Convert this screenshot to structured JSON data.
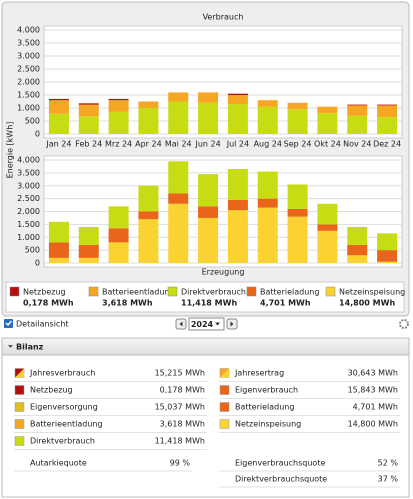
{
  "chart_data": [
    {
      "type": "bar",
      "stacked": true,
      "title": "Verbrauch",
      "y_label": "Energie [kWh]",
      "categories": [
        "Jan 24",
        "Feb 24",
        "Mrz 24",
        "Apr 24",
        "Mai 24",
        "Jun 24",
        "Jul 24",
        "Aug 24",
        "Sep 24",
        "Okt 24",
        "Nov 24",
        "Dez 24"
      ],
      "series": [
        {
          "name": "Direktverbrauch",
          "color": "#c8dc14",
          "values": [
            780,
            680,
            850,
            1000,
            1250,
            1200,
            1150,
            1050,
            950,
            800,
            700,
            650
          ]
        },
        {
          "name": "Batterieentladung",
          "color": "#f5a623",
          "values": [
            520,
            450,
            450,
            250,
            350,
            400,
            350,
            250,
            250,
            250,
            400,
            450
          ]
        },
        {
          "name": "Netzbezug",
          "color": "#b01010",
          "values": [
            50,
            50,
            50,
            0,
            0,
            0,
            50,
            0,
            0,
            0,
            30,
            30
          ]
        }
      ],
      "ylim": [
        0,
        4000
      ],
      "yticks": [
        0,
        500,
        {
          "value": 1000,
          "label": "1.000"
        },
        {
          "value": 1500,
          "label": "1.500"
        },
        {
          "value": 2000,
          "label": "2.000"
        },
        {
          "value": 2500,
          "label": "2.500"
        },
        {
          "value": 3000,
          "label": "3.000"
        },
        {
          "value": 3500,
          "label": "3.500"
        },
        {
          "value": 4000,
          "label": "4.000"
        }
      ],
      "grid": true
    },
    {
      "type": "bar",
      "stacked": true,
      "title": "Erzeugung",
      "series": [
        {
          "name": "Netzeinspeisung",
          "color": "#fad232",
          "values": [
            200,
            200,
            800,
            1700,
            2300,
            1750,
            2050,
            2150,
            1800,
            1250,
            300,
            50
          ]
        },
        {
          "name": "Batterieladung",
          "color": "#e8651a",
          "values": [
            600,
            500,
            550,
            300,
            400,
            450,
            400,
            350,
            300,
            250,
            400,
            450
          ]
        },
        {
          "name": "Direktverbrauch",
          "color": "#c8dc14",
          "values": [
            800,
            700,
            850,
            1000,
            1250,
            1250,
            1200,
            1050,
            950,
            800,
            700,
            650
          ]
        }
      ],
      "ylim": [
        0,
        4000
      ],
      "yticks": [
        0,
        500,
        {
          "value": 1000,
          "label": "1.000"
        },
        {
          "value": 1500,
          "label": "1.500"
        },
        {
          "value": 2000,
          "label": "2.000"
        },
        {
          "value": 2500,
          "label": "2.500"
        },
        {
          "value": 3000,
          "label": "3.000"
        },
        {
          "value": 3500,
          "label": "3.500"
        },
        {
          "value": 4000,
          "label": "4.000"
        }
      ],
      "grid": true
    }
  ],
  "legend": [
    {
      "name": "Netzbezug",
      "value": "0,178 MWh",
      "color": "#b01010"
    },
    {
      "name": "Batterieentladung",
      "value": "3,618 MWh",
      "color": "#f5a623"
    },
    {
      "name": "Direktverbrauch",
      "value": "11,418 MWh",
      "color": "#c8dc14"
    },
    {
      "name": "Batterieladung",
      "value": "4,701 MWh",
      "color": "#e8651a"
    },
    {
      "name": "Netzeinspeisung",
      "value": "14,800 MWh",
      "color": "#fad232"
    }
  ],
  "controls": {
    "detail": "Detailansicht",
    "year": "2024"
  },
  "bilanz": {
    "title": "Bilanz",
    "left": [
      {
        "label": "Jahresverbrauch",
        "value": "15,215 MWh"
      },
      {
        "label": "Netzbezug",
        "value": "0,178 MWh"
      },
      {
        "label": "Eigenversorgung",
        "value": "15,037 MWh"
      },
      {
        "label": "Batterieentladung",
        "value": "3,618 MWh"
      },
      {
        "label": "Direktverbrauch",
        "value": "11,418 MWh"
      }
    ],
    "right": [
      {
        "label": "Jahresertrag",
        "value": "30,643 MWh"
      },
      {
        "label": "Eigenverbrauch",
        "value": "15,843 MWh"
      },
      {
        "label": "Batterieladung",
        "value": "4,701 MWh"
      },
      {
        "label": "Netzeinspeisung",
        "value": "14,800 MWh"
      }
    ],
    "left_quotes": [
      {
        "label": "Autarkiequote",
        "value": "99 %"
      }
    ],
    "right_quotes": [
      {
        "label": "Eigenverbrauchsquote",
        "value": "52 %"
      },
      {
        "label": "Direktverbrauchsquote",
        "value": "37 %"
      }
    ]
  }
}
